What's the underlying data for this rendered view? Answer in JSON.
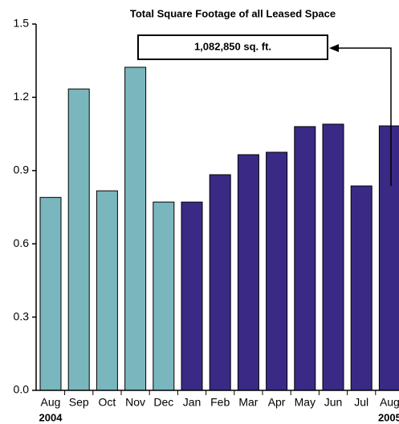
{
  "chart_data": {
    "type": "bar",
    "title": "Total Square Footage of all Leased Space",
    "annotation": "1,082,850 sq. ft.",
    "categories": [
      "Aug",
      "Sep",
      "Oct",
      "Nov",
      "Dec",
      "Jan",
      "Feb",
      "Mar",
      "Apr",
      "May",
      "Jun",
      "Jul",
      "Aug"
    ],
    "values": [
      0.79,
      1.234,
      0.817,
      1.323,
      0.771,
      0.771,
      0.883,
      0.965,
      0.975,
      1.08,
      1.09,
      0.837,
      1.083
    ],
    "colors": [
      "#7ab6bd",
      "#7ab6bd",
      "#7ab6bd",
      "#7ab6bd",
      "#7ab6bd",
      "#3a2a85",
      "#3a2a85",
      "#3a2a85",
      "#3a2a85",
      "#3a2a85",
      "#3a2a85",
      "#3a2a85",
      "#3a2a85"
    ],
    "category_groups": [
      {
        "label": "2004",
        "index": 0
      },
      {
        "label": "2005",
        "index": 12
      }
    ],
    "ylim": [
      0,
      1.5
    ],
    "yticks": [
      {
        "value": 0,
        "label": "0.0"
      },
      0.3,
      0.6,
      0.9,
      1.2,
      1.5
    ],
    "grid": false
  }
}
